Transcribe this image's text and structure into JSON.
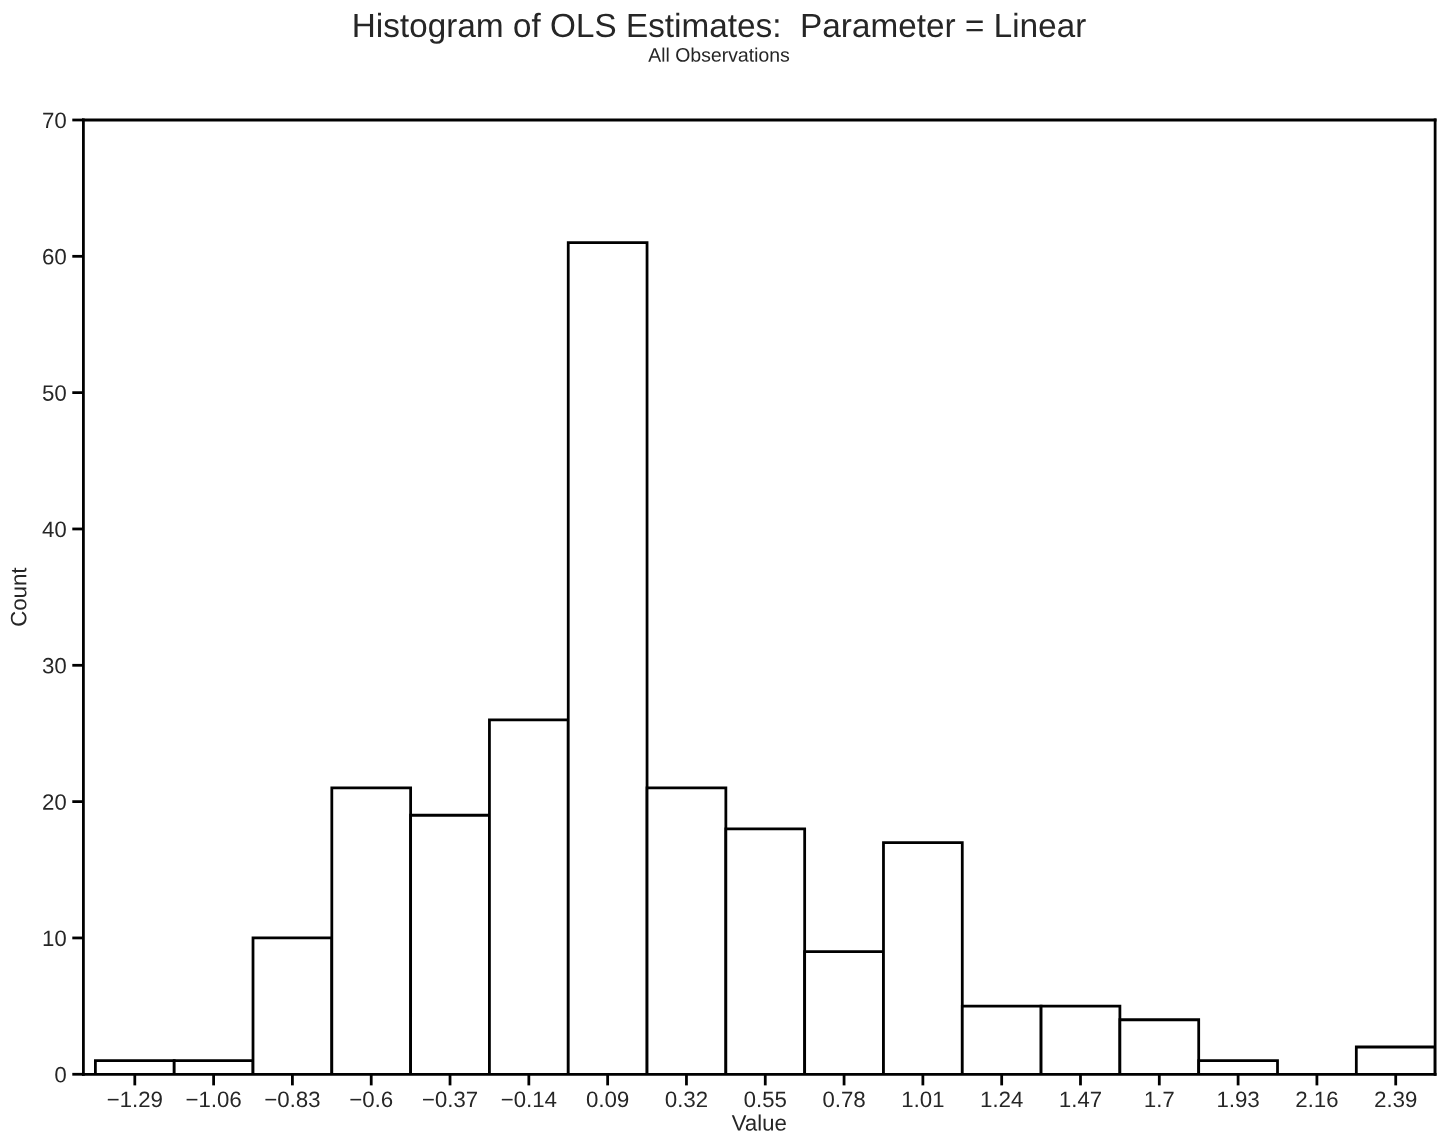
{
  "chart_data": {
    "type": "histogram",
    "title": "Histogram of OLS Estimates:  Parameter = Linear",
    "subtitle": "All Observations",
    "xlabel": "Value",
    "ylabel": "Count",
    "bins": [
      -1.405,
      -1.175,
      -0.945,
      -0.715,
      -0.485,
      -0.255,
      -0.025,
      0.205,
      0.435,
      0.665,
      0.895,
      1.125,
      1.355,
      1.585,
      1.815,
      2.045,
      2.275,
      2.505
    ],
    "values": [
      1,
      1,
      10,
      21,
      19,
      26,
      61,
      21,
      18,
      9,
      17,
      5,
      5,
      4,
      1,
      0,
      2
    ],
    "color": "#ffffff",
    "xlim": [
      -1.44,
      2.505
    ],
    "xticks": [
      {
        "value": -1.29,
        "label": "−1.29"
      },
      {
        "value": -1.06,
        "label": "−1.06"
      },
      {
        "value": -0.83,
        "label": "−0.83"
      },
      {
        "value": -0.6,
        "label": "−0.6"
      },
      {
        "value": -0.37,
        "label": "−0.37"
      },
      {
        "value": -0.14,
        "label": "−0.14"
      },
      {
        "value": 0.09,
        "label": "0.09"
      },
      {
        "value": 0.32,
        "label": "0.32"
      },
      {
        "value": 0.55,
        "label": "0.55"
      },
      {
        "value": 0.78,
        "label": "0.78"
      },
      {
        "value": 1.01,
        "label": "1.01"
      },
      {
        "value": 1.24,
        "label": "1.24"
      },
      {
        "value": 1.47,
        "label": "1.47"
      },
      {
        "value": 1.7,
        "label": "1.7"
      },
      {
        "value": 1.93,
        "label": "1.93"
      },
      {
        "value": 2.16,
        "label": "2.16"
      },
      {
        "value": 2.39,
        "label": "2.39"
      }
    ],
    "ylim": [
      0,
      70
    ],
    "yticks": [
      0,
      10,
      20,
      30,
      40,
      50,
      60,
      70
    ],
    "grid": false
  }
}
